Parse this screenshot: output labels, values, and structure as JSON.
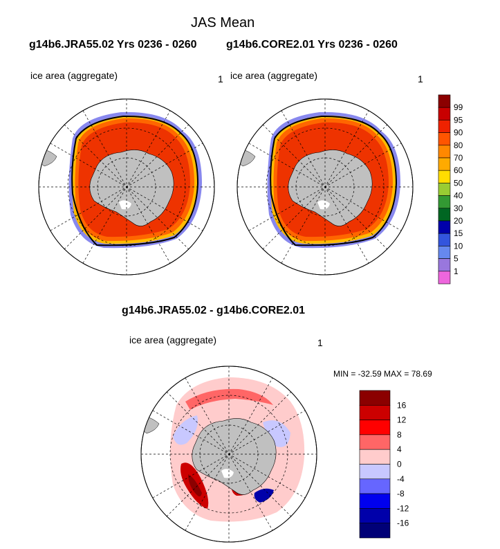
{
  "figure": {
    "title": "JAS Mean",
    "left_case": "g14b6.JRA55.02  Yrs 0236 - 0260",
    "right_case": "g14b6.CORE2.01  Yrs 0236 - 0260",
    "diff_title": "g14b6.JRA55.02 - g14b6.CORE2.01",
    "minmax_text": "MIN = -32.59 MAX =  78.69"
  },
  "panels": [
    {
      "id": "jra55",
      "label": "ice area  (aggregate)",
      "number": "1"
    },
    {
      "id": "core2",
      "label": "ice area  (aggregate)",
      "number": "1"
    },
    {
      "id": "diff",
      "label": "ice area  (aggregate)",
      "number": "1"
    }
  ],
  "colorbar_abs": {
    "levels": [
      "99",
      "95",
      "90",
      "80",
      "70",
      "60",
      "50",
      "40",
      "30",
      "20",
      "15",
      "10",
      "5",
      "1"
    ],
    "colors": [
      "#8b0000",
      "#c80000",
      "#ee2200",
      "#ff5500",
      "#ff8800",
      "#ffaa00",
      "#ffdd00",
      "#99cc33",
      "#339933",
      "#006622",
      "#0000aa",
      "#3355dd",
      "#6688ee",
      "#9977dd",
      "#ee66dd"
    ]
  },
  "colorbar_diff": {
    "levels": [
      "16",
      "12",
      "8",
      "4",
      "0",
      "-4",
      "-8",
      "-12",
      "-16"
    ],
    "colors": [
      "#8b0000",
      "#cc0000",
      "#ff0000",
      "#ff6666",
      "#ffcccc",
      "#c8c8ff",
      "#6666ff",
      "#0000ee",
      "#0000aa",
      "#000077"
    ]
  },
  "map_colors": {
    "land": "#c0c0c0",
    "ocean": "#ffffff",
    "ice_core": "#ee3300",
    "ice_mid": "#ff6600",
    "ice_edge": "#ffbb00",
    "ice_margin": "#8888ee"
  }
}
